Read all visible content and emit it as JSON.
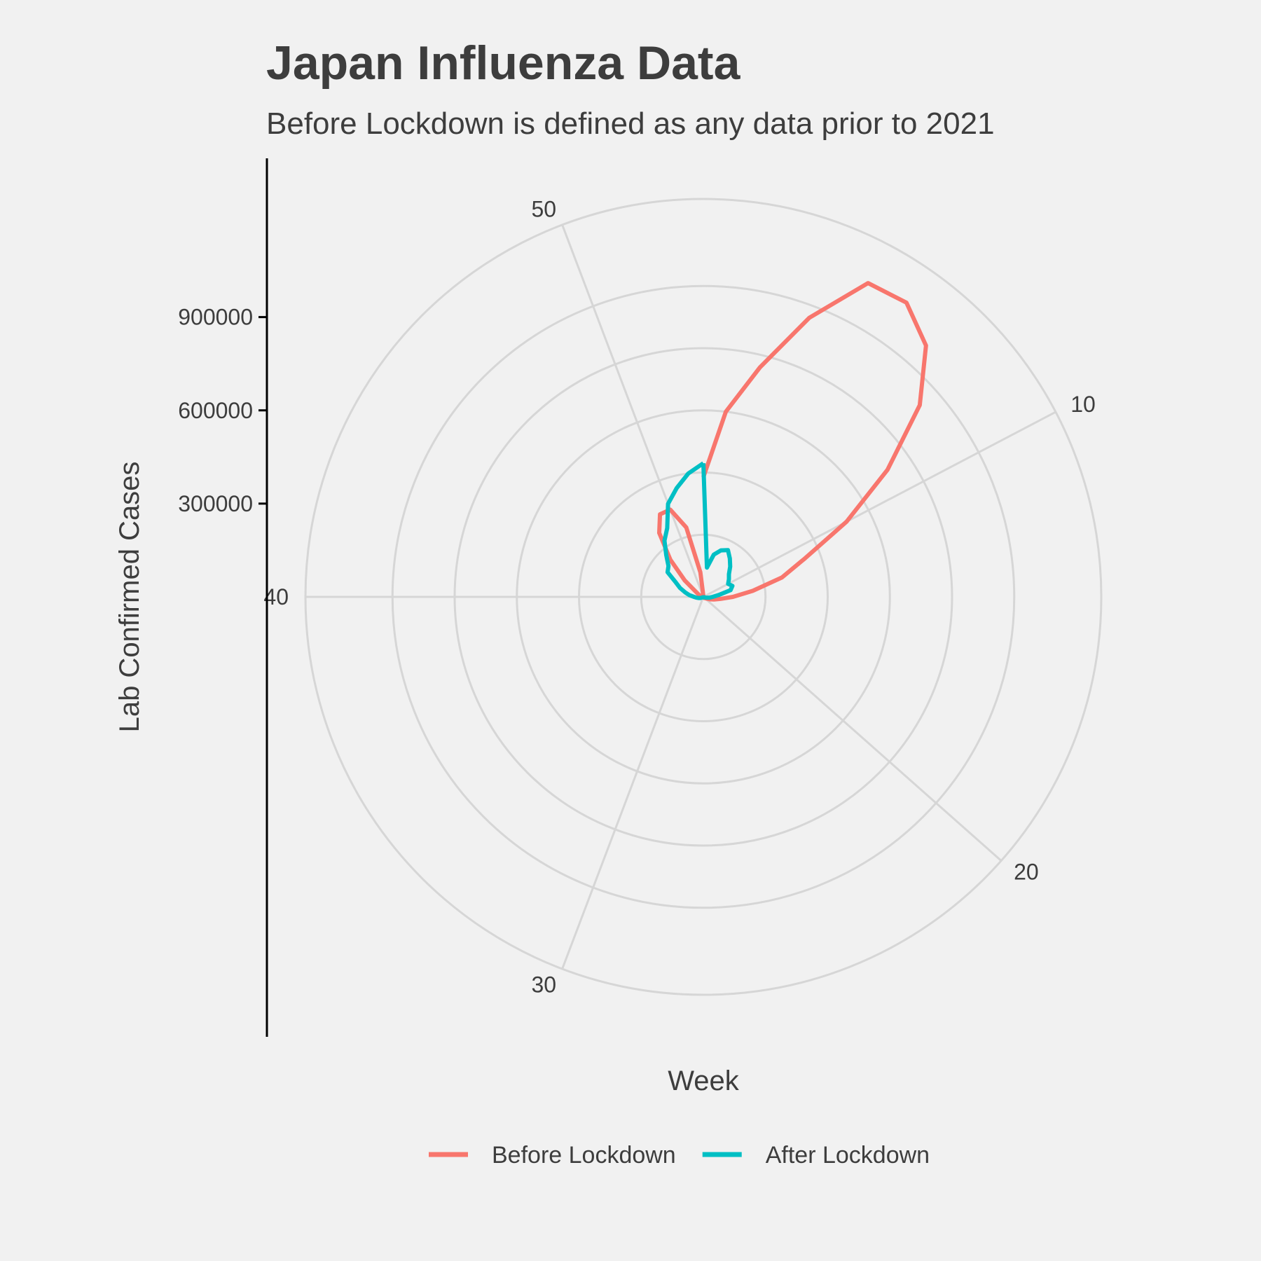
{
  "chart_data": {
    "type": "line",
    "coordinate_system": "polar",
    "title": "Japan Influenza Data",
    "subtitle": "Before Lockdown is defined as any data prior to 2021",
    "xlabel": "Week",
    "ylabel": "Lab Confirmed Cases",
    "x_ticks": [
      10,
      20,
      30,
      40,
      50
    ],
    "x_range": [
      1,
      53
    ],
    "y_ticks": [
      300000,
      600000,
      900000
    ],
    "ylim": [
      0,
      1280000
    ],
    "grid": true,
    "legend_position": "bottom",
    "series": [
      {
        "name": "Before Lockdown",
        "color": "#F8766D",
        "points": [
          [
            1,
            385000
          ],
          [
            2,
            600000
          ],
          [
            3,
            760000
          ],
          [
            4,
            960000
          ],
          [
            5,
            1140000
          ],
          [
            6,
            1150000
          ],
          [
            7,
            1080000
          ],
          [
            8,
            930000
          ],
          [
            9,
            720000
          ],
          [
            10,
            520000
          ],
          [
            11,
            350000
          ],
          [
            12,
            260000
          ],
          [
            13,
            160000
          ],
          [
            14,
            95000
          ],
          [
            15,
            55000
          ],
          [
            16,
            35000
          ],
          [
            17,
            22000
          ],
          [
            18,
            12000
          ],
          [
            19,
            8000
          ],
          [
            20,
            6000
          ],
          [
            21,
            5000
          ],
          [
            22,
            4000
          ],
          [
            23,
            3000
          ],
          [
            24,
            2500
          ],
          [
            25,
            2000
          ],
          [
            26,
            2000
          ],
          [
            27,
            2000
          ],
          [
            28,
            2000
          ],
          [
            29,
            2000
          ],
          [
            30,
            2000
          ],
          [
            31,
            2000
          ],
          [
            32,
            2000
          ],
          [
            33,
            2000
          ],
          [
            34,
            2000
          ],
          [
            35,
            2000
          ],
          [
            36,
            2000
          ],
          [
            37,
            2000
          ],
          [
            38,
            2000
          ],
          [
            39,
            2000
          ],
          [
            40,
            3000
          ],
          [
            41,
            5000
          ],
          [
            42,
            8000
          ],
          [
            43,
            12000
          ],
          [
            44,
            18000
          ],
          [
            45,
            30000
          ],
          [
            46,
            80000
          ],
          [
            47,
            160000
          ],
          [
            48,
            250000
          ],
          [
            49,
            300000
          ],
          [
            50,
            300000
          ],
          [
            51,
            230000
          ],
          [
            52,
            80000
          ],
          [
            53,
            3000
          ]
        ]
      },
      {
        "name": "After Lockdown",
        "color": "#00BFC4",
        "points": [
          [
            1,
            430000
          ],
          [
            2,
            95000
          ],
          [
            3,
            140000
          ],
          [
            4,
            160000
          ],
          [
            5,
            170000
          ],
          [
            6,
            150000
          ],
          [
            7,
            130000
          ],
          [
            8,
            110000
          ],
          [
            9,
            100000
          ],
          [
            10,
            90000
          ],
          [
            11,
            100000
          ],
          [
            12,
            90000
          ],
          [
            13,
            50000
          ],
          [
            14,
            30000
          ],
          [
            15,
            20000
          ],
          [
            16,
            10000
          ],
          [
            17,
            5000
          ],
          [
            18,
            3000
          ],
          [
            19,
            2000
          ],
          [
            20,
            2000
          ],
          [
            21,
            2000
          ],
          [
            22,
            2000
          ],
          [
            23,
            2000
          ],
          [
            24,
            2000
          ],
          [
            25,
            2000
          ],
          [
            26,
            2000
          ],
          [
            27,
            2000
          ],
          [
            28,
            2000
          ],
          [
            29,
            2000
          ],
          [
            30,
            2000
          ],
          [
            31,
            2000
          ],
          [
            32,
            2000
          ],
          [
            33,
            2000
          ],
          [
            34,
            2000
          ],
          [
            35,
            2000
          ],
          [
            36,
            5000
          ],
          [
            37,
            10000
          ],
          [
            38,
            15000
          ],
          [
            39,
            22000
          ],
          [
            40,
            30000
          ],
          [
            41,
            45000
          ],
          [
            42,
            60000
          ],
          [
            43,
            80000
          ],
          [
            44,
            100000
          ],
          [
            45,
            140000
          ],
          [
            46,
            150000
          ],
          [
            47,
            180000
          ],
          [
            48,
            220000
          ],
          [
            49,
            250000
          ],
          [
            50,
            320000
          ],
          [
            51,
            360000
          ],
          [
            52,
            400000
          ],
          [
            53,
            430000
          ]
        ]
      }
    ]
  }
}
